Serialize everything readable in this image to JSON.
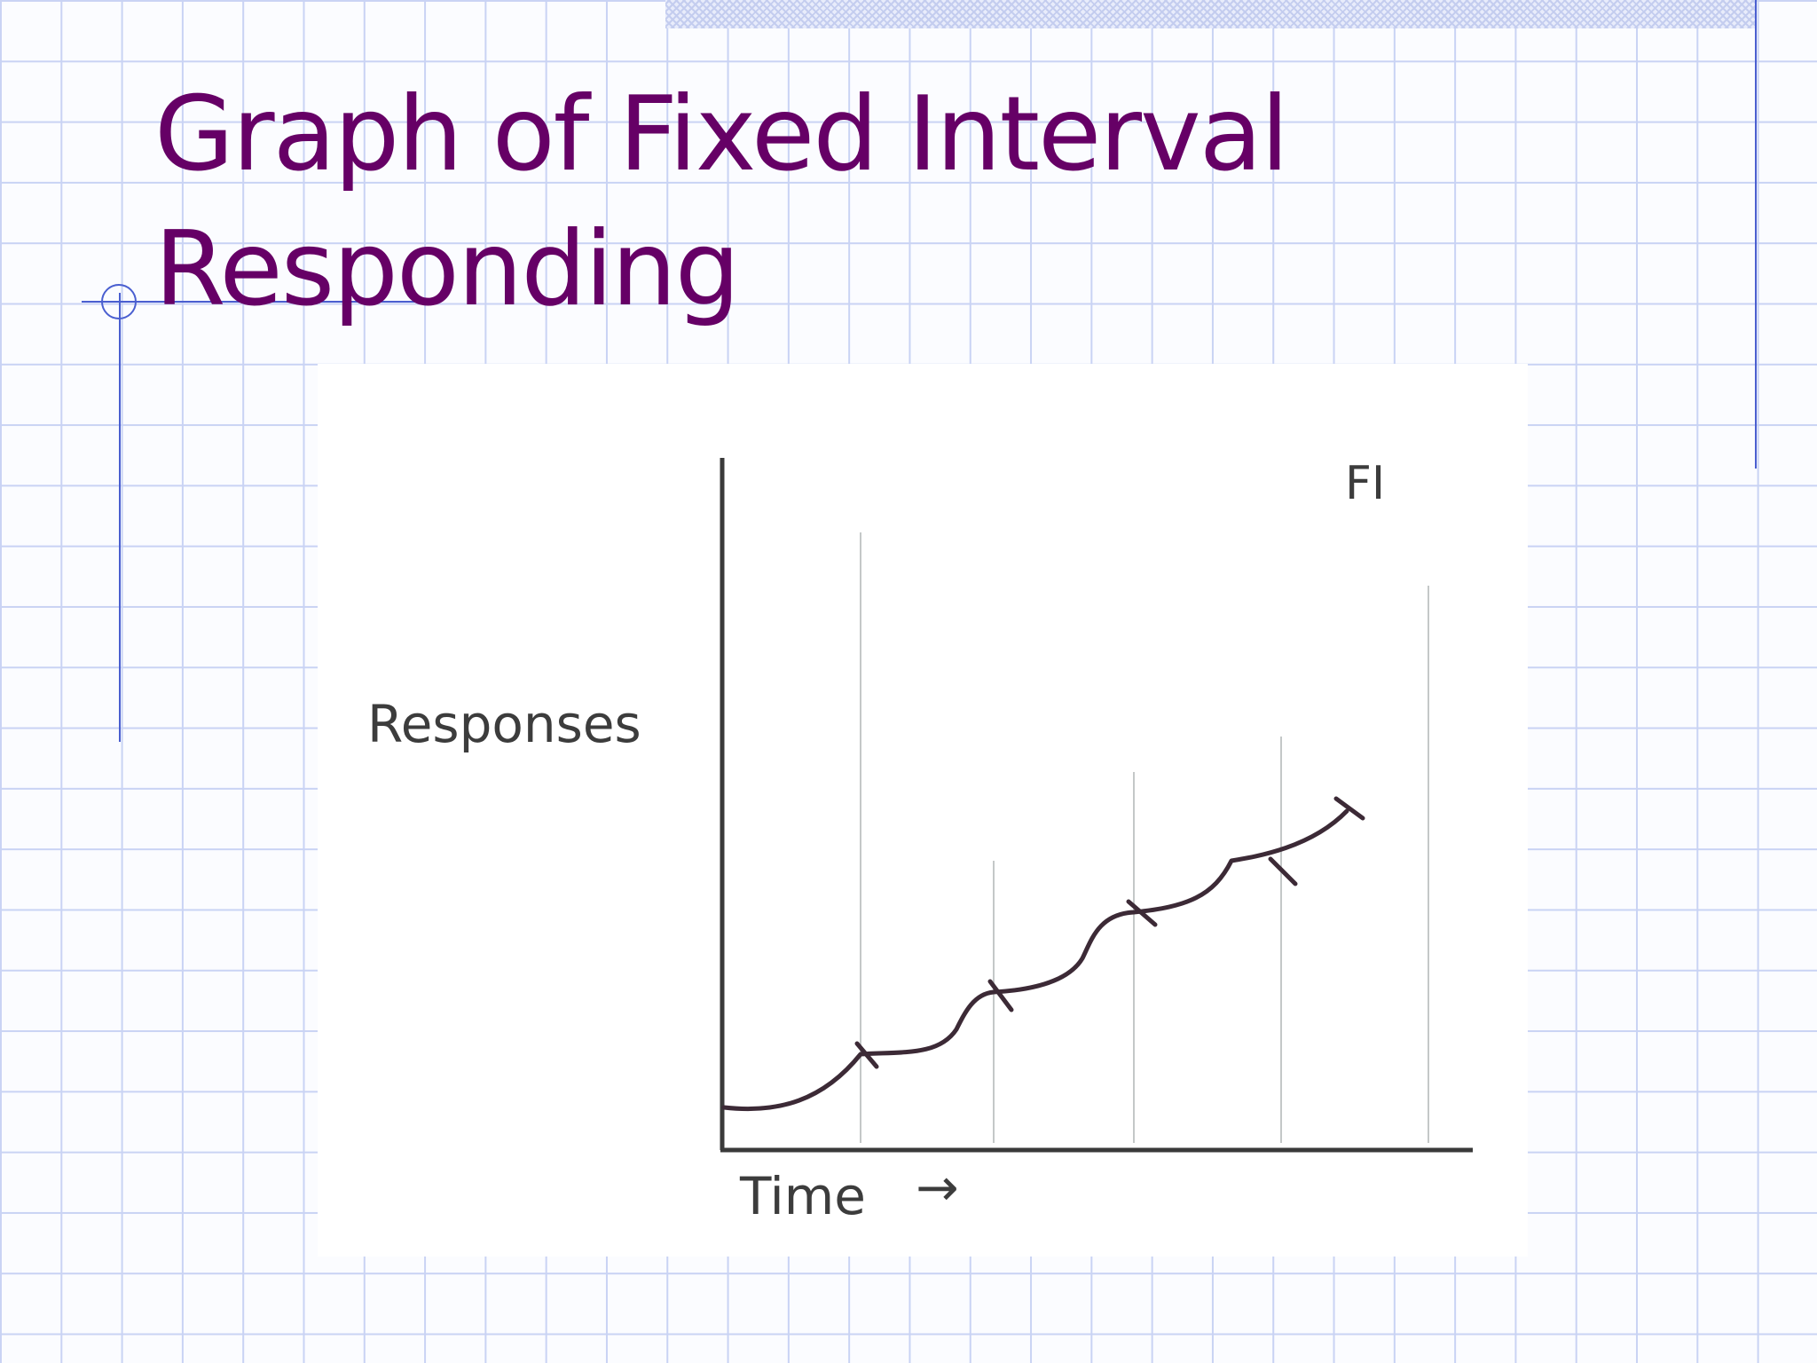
{
  "slide": {
    "title_line1": "Graph of Fixed Interval",
    "title_line2": "Responding"
  },
  "figure": {
    "corner_label": "FI",
    "y_axis_label": "Responses",
    "x_axis_label": "Time",
    "x_axis_arrow": "→"
  },
  "colors": {
    "title": "#660066",
    "grid": "#c9d3f4",
    "accent_rule": "#4a5fd0",
    "curve": "#3c2a36",
    "axes": "#3a3a3a"
  }
}
